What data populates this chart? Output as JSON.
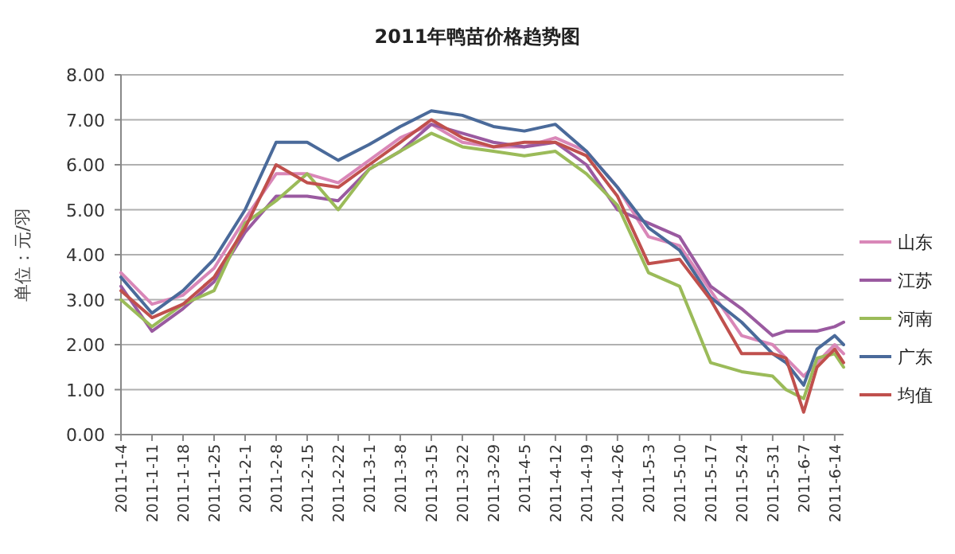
{
  "chart_data": {
    "type": "line",
    "title": "2011年鸭苗价格趋势图",
    "ylabel": "单位：元/羽",
    "x": [
      "2011-01-04",
      "2011-01-11",
      "2011-01-18",
      "2011-01-25",
      "2011-02-01",
      "2011-02-08",
      "2011-02-15",
      "2011-02-22",
      "2011-03-01",
      "2011-03-08",
      "2011-03-15",
      "2011-03-22",
      "2011-03-29",
      "2011-04-05",
      "2011-04-12",
      "2011-04-19",
      "2011-04-26",
      "2011-05-03",
      "2011-05-10",
      "2011-05-17",
      "2011-05-24",
      "2011-05-31",
      "2011-06-03",
      "2011-06-07",
      "2011-06-10",
      "2011-06-14",
      "2011-06-16"
    ],
    "series": [
      {
        "name": "山东",
        "color": "#d987b8",
        "values": [
          3.6,
          2.9,
          3.1,
          3.7,
          4.8,
          5.8,
          5.8,
          5.6,
          6.1,
          6.6,
          6.9,
          6.5,
          6.4,
          6.4,
          6.6,
          6.3,
          5.5,
          4.4,
          4.2,
          3.2,
          2.2,
          2.0,
          1.7,
          1.3,
          1.6,
          2.0,
          1.8
        ]
      },
      {
        "name": "江苏",
        "color": "#9a5aa0",
        "values": [
          3.3,
          2.3,
          2.8,
          3.4,
          4.5,
          5.3,
          5.3,
          5.2,
          5.9,
          6.3,
          6.9,
          6.7,
          6.5,
          6.4,
          6.5,
          6.0,
          5.0,
          4.7,
          4.4,
          3.3,
          2.8,
          2.2,
          2.3,
          2.3,
          2.3,
          2.4,
          2.5
        ]
      },
      {
        "name": "河南",
        "color": "#9bbb59",
        "values": [
          3.0,
          2.4,
          2.9,
          3.2,
          4.7,
          5.2,
          5.8,
          5.0,
          5.9,
          6.3,
          6.7,
          6.4,
          6.3,
          6.2,
          6.3,
          5.8,
          5.1,
          3.6,
          3.3,
          1.6,
          1.4,
          1.3,
          1.0,
          0.8,
          1.7,
          1.8,
          1.5
        ]
      },
      {
        "name": "广东",
        "color": "#4a6a9a",
        "values": [
          3.5,
          2.7,
          3.2,
          3.9,
          5.0,
          6.5,
          6.5,
          6.1,
          6.45,
          6.85,
          7.2,
          7.1,
          6.85,
          6.75,
          6.9,
          6.3,
          5.5,
          4.6,
          4.1,
          3.05,
          2.5,
          1.8,
          1.6,
          1.1,
          1.9,
          2.2,
          2.0
        ]
      },
      {
        "name": "均值",
        "color": "#c0504d",
        "values": [
          3.2,
          2.6,
          2.9,
          3.5,
          4.6,
          6.0,
          5.6,
          5.5,
          6.0,
          6.5,
          7.0,
          6.6,
          6.4,
          6.5,
          6.5,
          6.2,
          5.3,
          3.8,
          3.9,
          3.0,
          1.8,
          1.8,
          1.7,
          0.5,
          1.5,
          1.9,
          1.6
        ]
      }
    ],
    "xlim": [
      "2011-01-04",
      "2011-06-16"
    ],
    "xticks": [
      {
        "value": "2011-01-04",
        "label": "2011-1-4"
      },
      {
        "value": "2011-01-11",
        "label": "2011-1-11"
      },
      {
        "value": "2011-01-18",
        "label": "2011-1-18"
      },
      {
        "value": "2011-01-25",
        "label": "2011-1-25"
      },
      {
        "value": "2011-02-01",
        "label": "2011-2-1"
      },
      {
        "value": "2011-02-08",
        "label": "2011-2-8"
      },
      {
        "value": "2011-02-15",
        "label": "2011-2-15"
      },
      {
        "value": "2011-02-22",
        "label": "2011-2-22"
      },
      {
        "value": "2011-03-01",
        "label": "2011-3-1"
      },
      {
        "value": "2011-03-08",
        "label": "2011-3-8"
      },
      {
        "value": "2011-03-15",
        "label": "2011-3-15"
      },
      {
        "value": "2011-03-22",
        "label": "2011-3-22"
      },
      {
        "value": "2011-03-29",
        "label": "2011-3-29"
      },
      {
        "value": "2011-04-05",
        "label": "2011-4-5"
      },
      {
        "value": "2011-04-12",
        "label": "2011-4-12"
      },
      {
        "value": "2011-04-19",
        "label": "2011-4-19"
      },
      {
        "value": "2011-04-26",
        "label": "2011-4-26"
      },
      {
        "value": "2011-05-03",
        "label": "2011-5-3"
      },
      {
        "value": "2011-05-10",
        "label": "2011-5-10"
      },
      {
        "value": "2011-05-17",
        "label": "2011-5-17"
      },
      {
        "value": "2011-05-24",
        "label": "2011-5-24"
      },
      {
        "value": "2011-05-31",
        "label": "2011-5-31"
      },
      {
        "value": "2011-06-07",
        "label": "2011-6-7"
      },
      {
        "value": "2011-06-14",
        "label": "2011-6-14"
      }
    ],
    "ylim": [
      0,
      8
    ],
    "yticks": [
      {
        "value": 0,
        "label": "0.00"
      },
      {
        "value": 1,
        "label": "1.00"
      },
      {
        "value": 2,
        "label": "2.00"
      },
      {
        "value": 3,
        "label": "3.00"
      },
      {
        "value": 4,
        "label": "4.00"
      },
      {
        "value": 5,
        "label": "5.00"
      },
      {
        "value": 6,
        "label": "6.00"
      },
      {
        "value": 7,
        "label": "7.00"
      },
      {
        "value": 8,
        "label": "8.00"
      }
    ],
    "grid": "y",
    "legend": "right",
    "marker": "none",
    "line_style": "solid"
  }
}
